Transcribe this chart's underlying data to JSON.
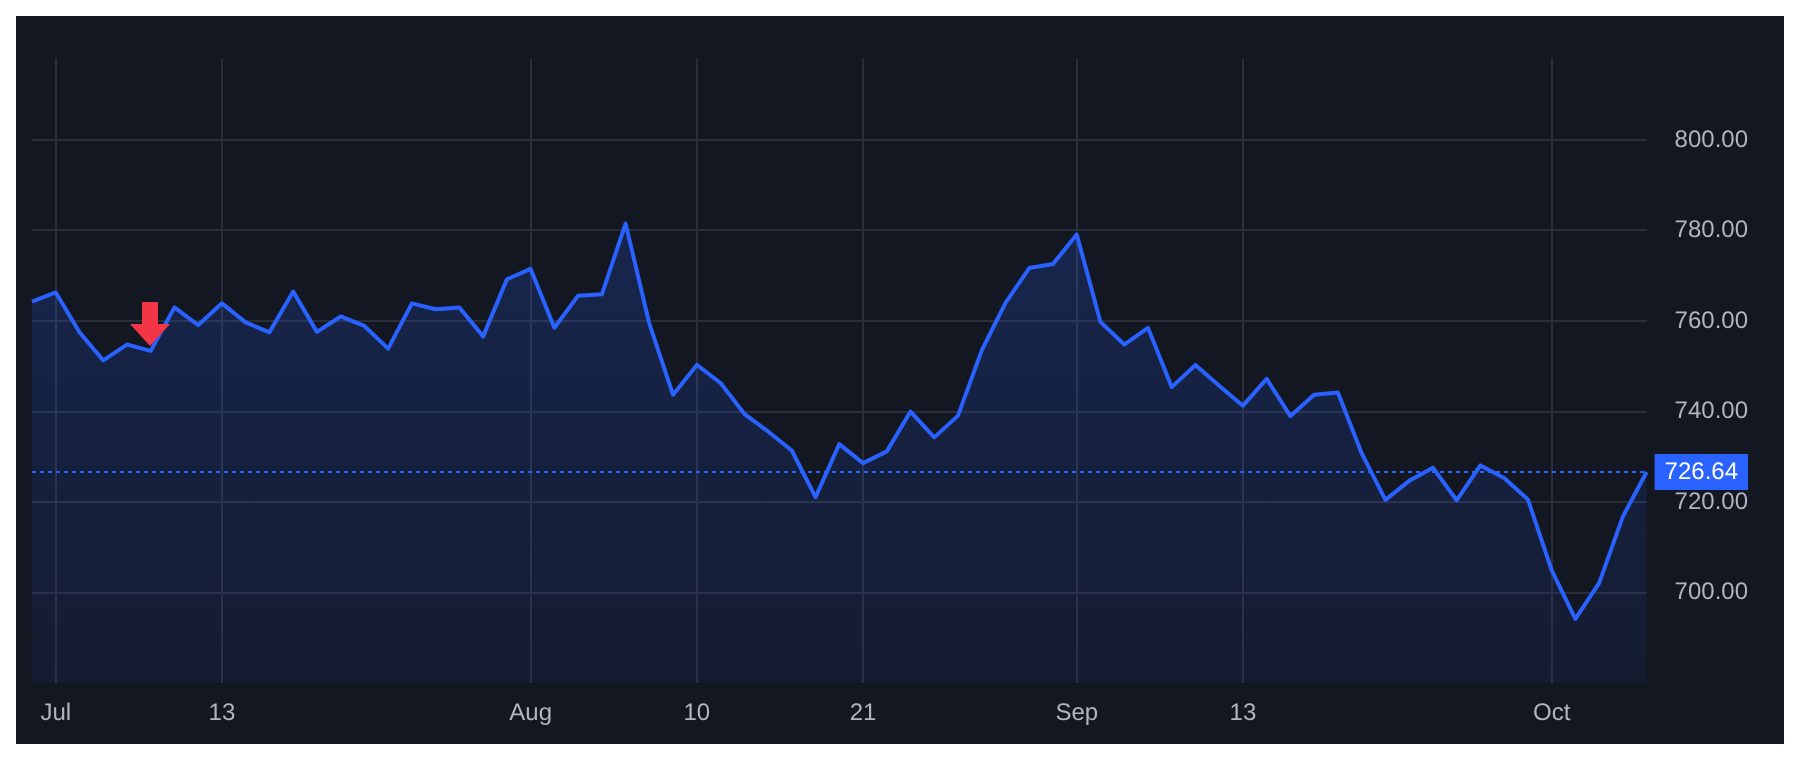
{
  "chart_data": {
    "type": "area",
    "categories": [
      null,
      "Jul",
      null,
      null,
      null,
      null,
      null,
      null,
      "13",
      null,
      null,
      null,
      null,
      null,
      null,
      null,
      null,
      null,
      null,
      null,
      null,
      "Aug",
      null,
      null,
      null,
      null,
      null,
      null,
      "10",
      null,
      null,
      null,
      null,
      null,
      null,
      "21",
      null,
      null,
      null,
      null,
      null,
      null,
      null,
      null,
      "Sep",
      null,
      null,
      null,
      null,
      null,
      null,
      "13",
      null,
      null,
      null,
      null,
      null,
      null,
      null,
      null,
      null,
      null,
      null,
      null,
      "Oct",
      null,
      null,
      null,
      null
    ],
    "series": [
      {
        "color": "#2962ff",
        "values": [
          764.3,
          766.3,
          757.5,
          751.3,
          754.8,
          753.4,
          763.0,
          759.1,
          763.9,
          759.7,
          757.5,
          766.5,
          757.6,
          761.0,
          758.9,
          753.9,
          763.9,
          762.6,
          763.0,
          756.6,
          769.2,
          771.5,
          758.5,
          765.6,
          765.9,
          781.5,
          759.4,
          743.7,
          750.3,
          746.3,
          739.5,
          735.6,
          731.4,
          721.1,
          732.8,
          728.6,
          731.2,
          740.0,
          734.3,
          739.1,
          753.5,
          764.0,
          771.7,
          772.6,
          779.1,
          759.8,
          754.8,
          758.5,
          745.4,
          750.3,
          745.7,
          741.3,
          747.2,
          739.0,
          743.7,
          744.2,
          730.8,
          720.5,
          724.7,
          727.6,
          720.4,
          728.1,
          725.3,
          720.6,
          705.0,
          694.2,
          702.1,
          716.8,
          726.64
        ]
      }
    ],
    "ylim": [
      680,
      818
    ],
    "yticks": [
      {
        "value": 700,
        "label": "700.00"
      },
      {
        "value": 720,
        "label": "720.00"
      },
      {
        "value": 740,
        "label": "740.00"
      },
      {
        "value": 760,
        "label": "760.00"
      },
      {
        "value": 780,
        "label": "780.00"
      },
      {
        "value": 800,
        "label": "800.00"
      }
    ],
    "ref_lines": [
      {
        "axis": "y",
        "value": 726.64,
        "label": "726.64",
        "color": "#2962ff",
        "line_style": "dotted"
      }
    ],
    "grid": true,
    "legend": false
  }
}
